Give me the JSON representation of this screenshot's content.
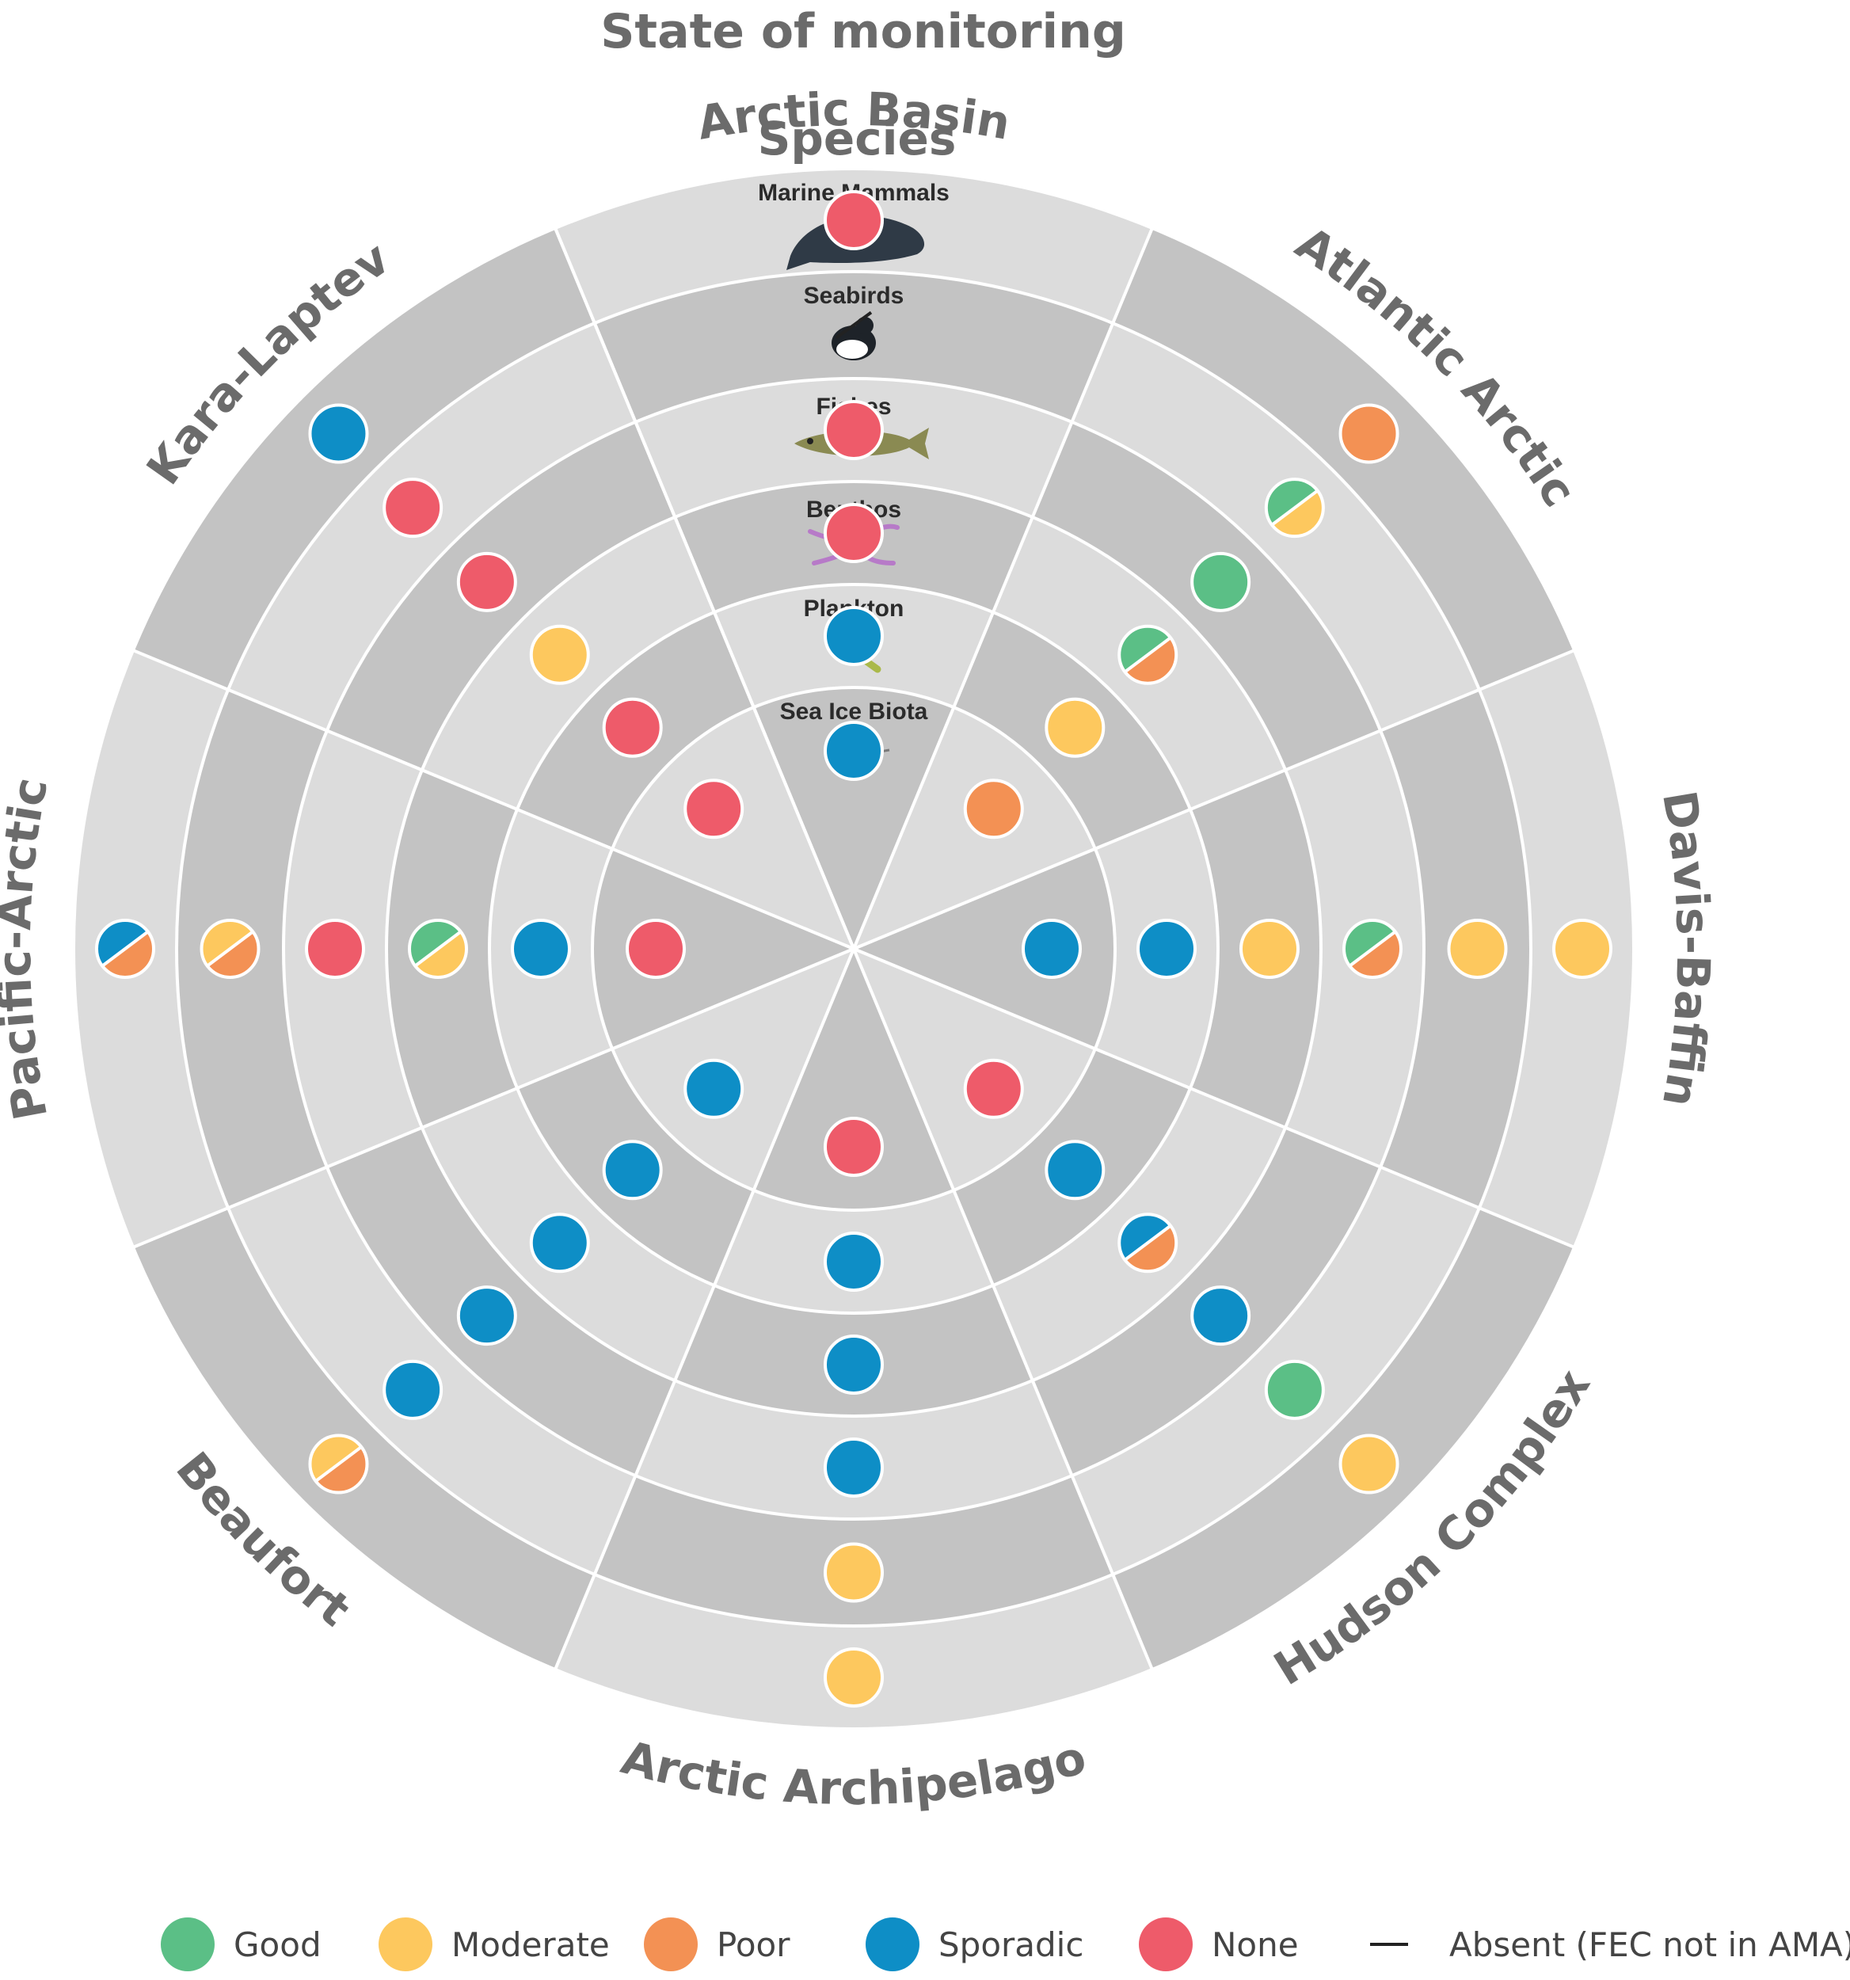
{
  "title": "State of monitoring",
  "species_heading": "Species",
  "colors": {
    "Good": "#5bbf86",
    "Moderate": "#fdc85e",
    "Poor": "#f39154",
    "Sporadic": "#0e8ec6",
    "None": "#ee5b6a",
    "ring_light": "#dcdcdc",
    "ring_dark": "#c3c3c3",
    "divider": "#ffffff",
    "text": "#6b6b6b"
  },
  "rings": [
    "Sea Ice Biota",
    "Plankton",
    "Benthos",
    "Fishes",
    "Seabirds",
    "Marine Mammals"
  ],
  "ring_icons": [
    "copepod-icon",
    "plankton-icon",
    "benthos-icon",
    "fish-icon",
    "seabird-icon",
    "whale-icon"
  ],
  "legend": [
    {
      "status": "Good",
      "label": "Good"
    },
    {
      "status": "Moderate",
      "label": "Moderate"
    },
    {
      "status": "Poor",
      "label": "Poor"
    },
    {
      "status": "Sporadic",
      "label": "Sporadic"
    },
    {
      "status": "None",
      "label": "None"
    },
    {
      "status": "Absent",
      "label": "Absent (FEC not in AMA)"
    }
  ],
  "chart_data": {
    "type": "radial status matrix",
    "title": "State of monitoring",
    "categories": [
      "Sea Ice Biota",
      "Plankton",
      "Benthos",
      "Fishes",
      "Seabirds",
      "Marine Mammals"
    ],
    "regions": [
      {
        "name": "Atlantic Arctic",
        "status": [
          [
            "Poor"
          ],
          [
            "Moderate"
          ],
          [
            "Good",
            "Poor"
          ],
          [
            "Good"
          ],
          [
            "Good",
            "Moderate"
          ],
          [
            "Poor"
          ]
        ]
      },
      {
        "name": "Davis-Baffin",
        "status": [
          [
            "Sporadic"
          ],
          [
            "Sporadic"
          ],
          [
            "Moderate"
          ],
          [
            "Good",
            "Poor"
          ],
          [
            "Moderate"
          ],
          [
            "Moderate"
          ]
        ]
      },
      {
        "name": "Hudson Complex",
        "status": [
          [
            "None"
          ],
          [
            "Sporadic"
          ],
          [
            "Sporadic",
            "Poor"
          ],
          [
            "Sporadic"
          ],
          [
            "Good"
          ],
          [
            "Moderate"
          ]
        ]
      },
      {
        "name": "Arctic Archipelago",
        "status": [
          [
            "None"
          ],
          [
            "Sporadic"
          ],
          [
            "Sporadic"
          ],
          [
            "Sporadic"
          ],
          [
            "Moderate"
          ],
          [
            "Moderate"
          ]
        ]
      },
      {
        "name": "Beaufort",
        "status": [
          [
            "Sporadic"
          ],
          [
            "Sporadic"
          ],
          [
            "Sporadic"
          ],
          [
            "Sporadic"
          ],
          [
            "Sporadic"
          ],
          [
            "Moderate",
            "Poor"
          ]
        ]
      },
      {
        "name": "Pacific-Arctic",
        "status": [
          [
            "None"
          ],
          [
            "Sporadic"
          ],
          [
            "Good",
            "Moderate"
          ],
          [
            "None"
          ],
          [
            "Moderate",
            "Poor"
          ],
          [
            "Sporadic",
            "Poor"
          ]
        ]
      },
      {
        "name": "Kara-Laptev",
        "status": [
          [
            "None"
          ],
          [
            "None"
          ],
          [
            "Moderate"
          ],
          [
            "None"
          ],
          [
            "None"
          ],
          [
            "Sporadic"
          ]
        ]
      },
      {
        "name": "Arctic Basin",
        "status": [
          [
            "Sporadic"
          ],
          [
            "Sporadic"
          ],
          [
            "None"
          ],
          [
            "None"
          ],
          [
            "Absent"
          ],
          [
            "None"
          ]
        ]
      }
    ]
  }
}
